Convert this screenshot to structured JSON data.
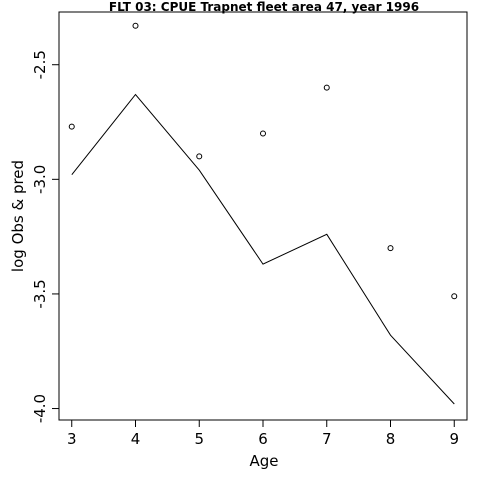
{
  "chart_data": {
    "type": "line",
    "title": "FLT 03: CPUE Trapnet fleet area 47, year 1996",
    "xlabel": "Age",
    "ylabel": "log Obs & pred",
    "xlim": [
      2.8,
      9.2
    ],
    "ylim": [
      -4.05,
      -2.27
    ],
    "x_ticks": [
      3,
      4,
      5,
      6,
      7,
      8,
      9
    ],
    "x_tick_labels": [
      "3",
      "4",
      "5",
      "6",
      "7",
      "8",
      "9"
    ],
    "y_ticks": [
      -4.0,
      -3.5,
      -3.0,
      -2.5
    ],
    "y_tick_labels": [
      "-4.0",
      "-3.5",
      "-3.0",
      "-2.5"
    ],
    "grid": false,
    "series": [
      {
        "style": "points",
        "x": [
          3,
          4,
          5,
          6,
          7,
          8,
          9
        ],
        "y": [
          -2.77,
          -2.33,
          -2.9,
          -2.8,
          -2.6,
          -3.3,
          -3.51
        ]
      },
      {
        "style": "line",
        "x": [
          3,
          4,
          5,
          6,
          7,
          8,
          9
        ],
        "y": [
          -2.98,
          -2.63,
          -2.96,
          -3.37,
          -3.24,
          -3.68,
          -3.98
        ]
      }
    ]
  }
}
